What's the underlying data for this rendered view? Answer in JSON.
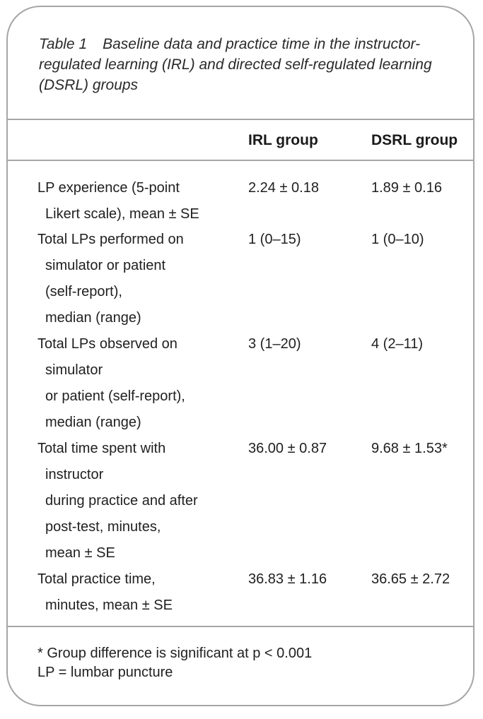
{
  "caption": {
    "label": "Table 1",
    "lines": [
      "Baseline data and practice time in the instructor-",
      "regulated learning (IRL) and directed self-regulated learning",
      "(DSRL) groups"
    ]
  },
  "columns": {
    "irl": "IRL group",
    "dsrl": "DSRL group"
  },
  "rows": [
    {
      "label_lines": [
        "LP experience (5-point",
        "Likert scale), mean ± SE"
      ],
      "irl": "2.24 ± 0.18",
      "dsrl": "1.89 ± 0.16"
    },
    {
      "label_lines": [
        "Total LPs performed on",
        "simulator or patient",
        "(self-report),",
        "median (range)"
      ],
      "irl": "1 (0–15)",
      "dsrl": "1 (0–10)"
    },
    {
      "label_lines": [
        "Total LPs observed on",
        "simulator",
        "or patient (self-report),",
        "median (range)"
      ],
      "irl": "3 (1–20)",
      "dsrl": "4 (2–11)"
    },
    {
      "label_lines": [
        "Total time spent with",
        "instructor",
        "during practice and after",
        "post-test, minutes,",
        "mean ± SE"
      ],
      "irl": "36.00 ± 0.87",
      "dsrl": "9.68 ± 1.53*"
    },
    {
      "label_lines": [
        "Total practice time,",
        "minutes, mean ± SE"
      ],
      "irl": "36.83 ± 1.16",
      "dsrl": "36.65 ± 2.72"
    }
  ],
  "footnotes": [
    "* Group difference is significant at p < 0.001",
    "LP = lumbar puncture"
  ]
}
